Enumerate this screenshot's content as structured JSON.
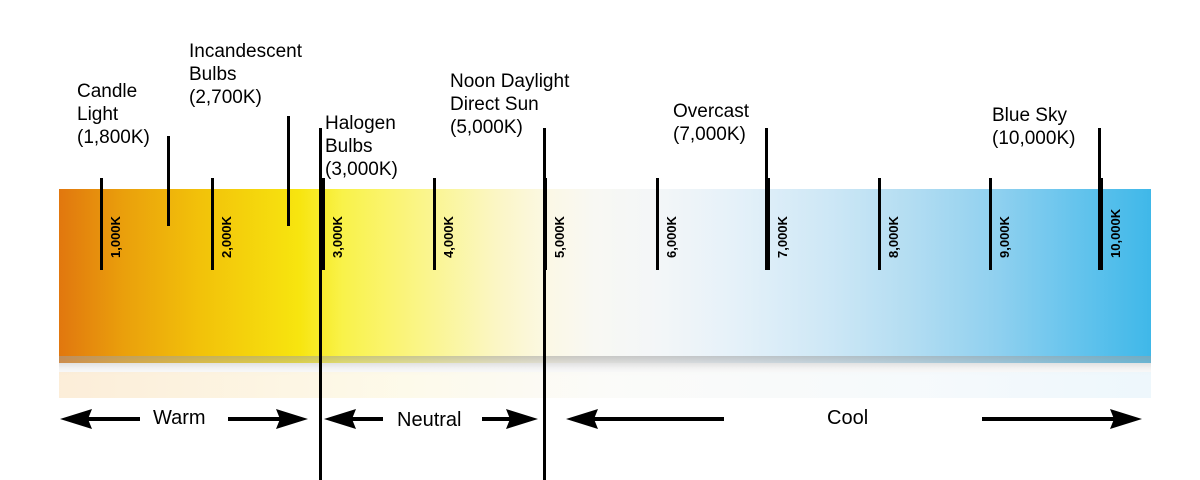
{
  "scale": {
    "ticks": [
      {
        "kelvin": 1000,
        "label": "1,000K"
      },
      {
        "kelvin": 2000,
        "label": "2,000K"
      },
      {
        "kelvin": 3000,
        "label": "3,000K"
      },
      {
        "kelvin": 4000,
        "label": "4,000K"
      },
      {
        "kelvin": 5000,
        "label": "5,000K"
      },
      {
        "kelvin": 6000,
        "label": "6,000K"
      },
      {
        "kelvin": 7000,
        "label": "7,000K"
      },
      {
        "kelvin": 8000,
        "label": "8,000K"
      },
      {
        "kelvin": 9000,
        "label": "9,000K"
      },
      {
        "kelvin": 10000,
        "label": "10,000K"
      }
    ],
    "warm_color": "#e1770e",
    "cool_color": "#3fb8e9"
  },
  "sources": [
    {
      "kelvin": 1800,
      "lines": [
        "Candle",
        "Light",
        "(1,800K)"
      ]
    },
    {
      "kelvin": 2700,
      "lines": [
        "Incandescent",
        "Bulbs",
        "(2,700K)"
      ]
    },
    {
      "kelvin": 3000,
      "lines": [
        "Halogen",
        "Bulbs",
        "(3,000K)"
      ]
    },
    {
      "kelvin": 5000,
      "lines": [
        "Noon Daylight",
        "Direct Sun",
        "(5,000K)"
      ]
    },
    {
      "kelvin": 7000,
      "lines": [
        "Overcast",
        "(7,000K)"
      ]
    },
    {
      "kelvin": 10000,
      "lines": [
        "Blue Sky",
        "(10,000K)"
      ]
    }
  ],
  "regions": {
    "warm": "Warm",
    "neutral": "Neutral",
    "cool": "Cool"
  }
}
